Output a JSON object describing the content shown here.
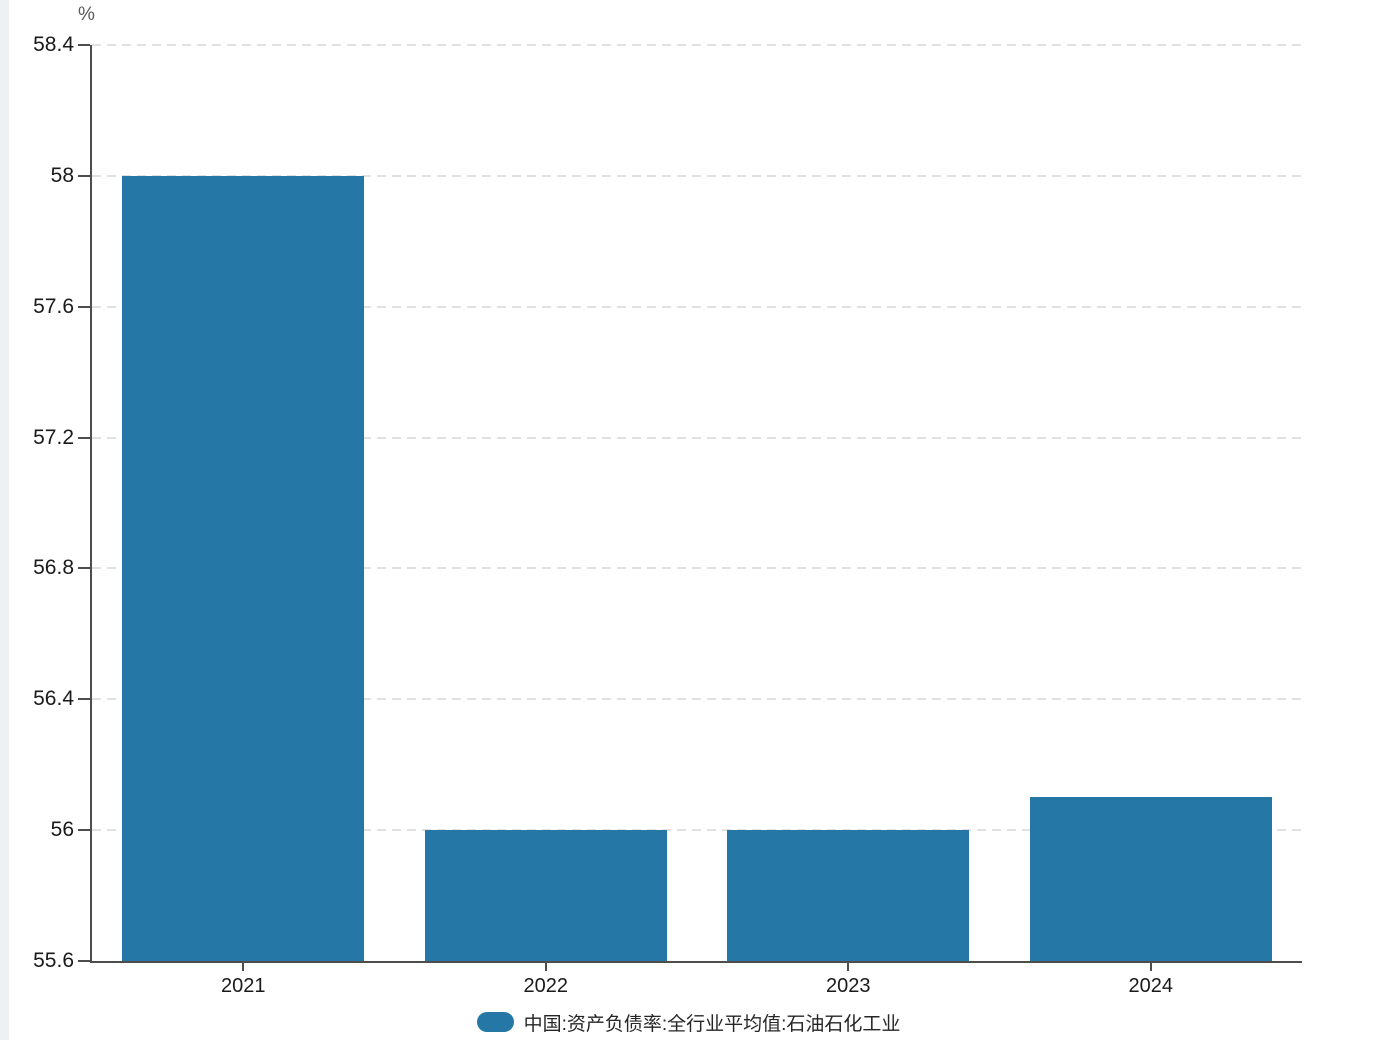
{
  "chart_data": {
    "type": "bar",
    "categories": [
      "2021",
      "2022",
      "2023",
      "2024"
    ],
    "values": [
      58.0,
      56.0,
      56.0,
      56.1
    ],
    "series_name": "中国:资产负债率:全行业平均值:石油石化工业",
    "unit_label": "%",
    "ylim": [
      55.6,
      58.4
    ],
    "yticks": [
      58.4,
      58.0,
      57.6,
      57.2,
      56.8,
      56.4,
      56.0,
      55.6
    ],
    "ytick_labels": [
      "58.4",
      "58",
      "57.6",
      "57.2",
      "56.8",
      "56.4",
      "56",
      "55.6"
    ],
    "bar_color": "#2578a6",
    "axis_color": "#4d4d4d",
    "grid_color": "#e1e1e1",
    "grid": "horizontal-dashed",
    "bar_slot_fraction": 0.8,
    "legend_position": "bottom-center"
  },
  "legend": {
    "label": "中国:资产负债率:全行业平均值:石油石化工业"
  }
}
